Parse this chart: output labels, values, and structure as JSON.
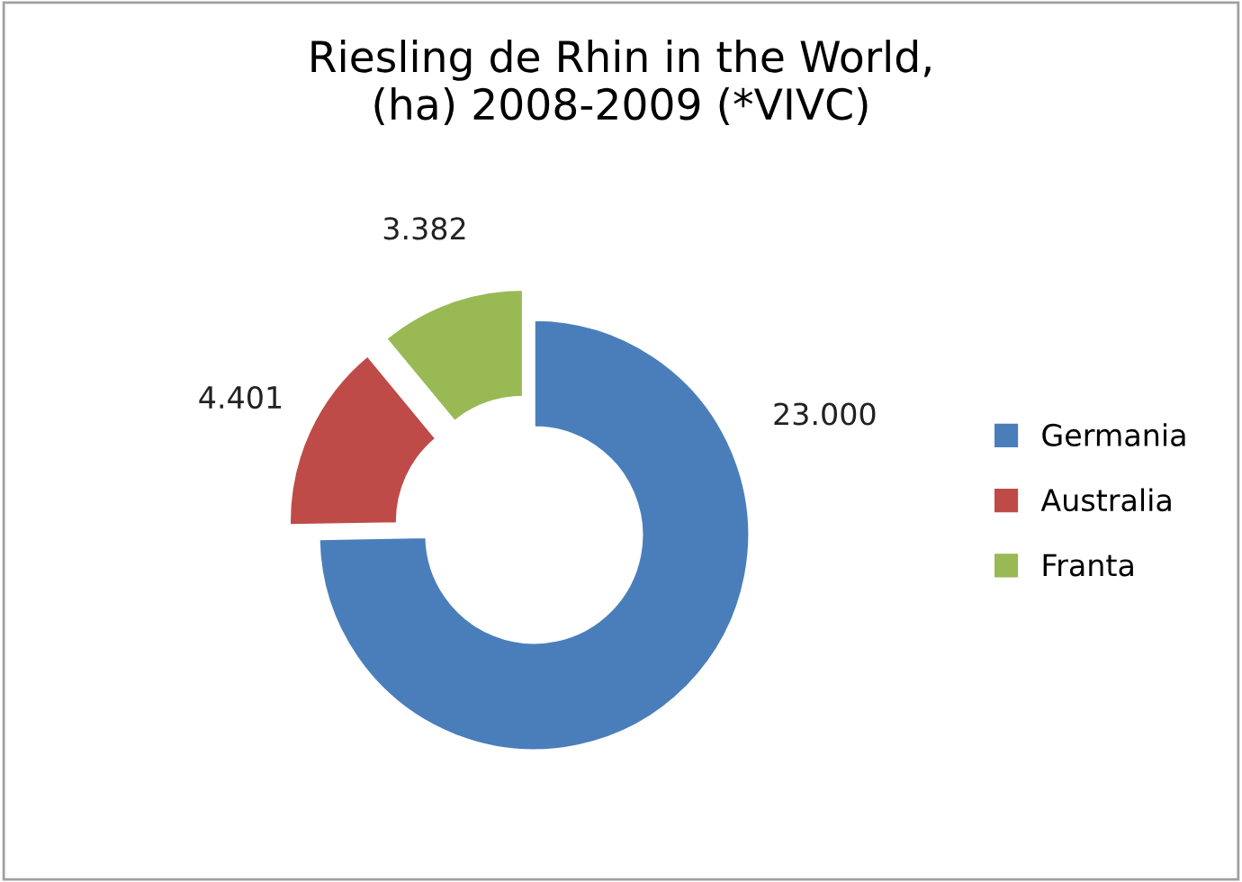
{
  "chart_data": {
    "type": "donut",
    "title": "Riesling de Rhin in the World,\n(ha) 2008-2009 (*VIVC)",
    "categories": [
      "Germania",
      "Australia",
      "Franta"
    ],
    "values": [
      23000,
      4401,
      3382
    ],
    "value_labels": [
      "23.000",
      "4.401",
      "3.382"
    ],
    "colors": [
      "#4a7ebb",
      "#be4b48",
      "#98b954"
    ],
    "legend": "right"
  }
}
